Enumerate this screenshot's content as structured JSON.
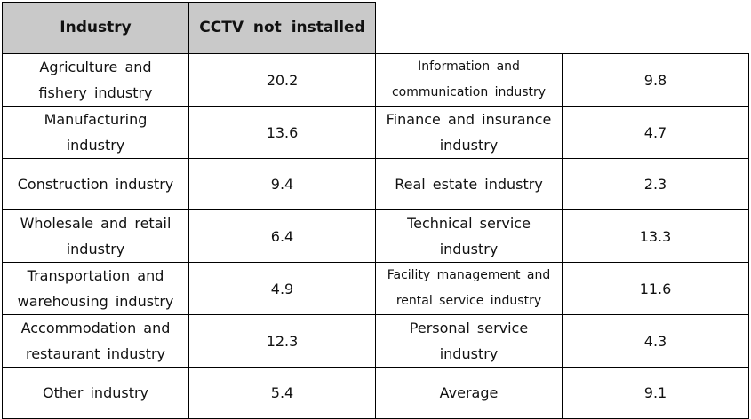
{
  "header": {
    "industry": "Industry",
    "cctv": "CCTV not installed"
  },
  "rows": [
    {
      "left_industry": [
        "Agriculture and",
        "fishery industry"
      ],
      "left_value": "20.2",
      "right_industry": [
        "Information and",
        "communication industry"
      ],
      "right_value": "9.8"
    },
    {
      "left_industry": [
        "Manufacturing",
        "industry"
      ],
      "left_value": "13.6",
      "right_industry": [
        "Finance and insurance",
        "industry"
      ],
      "right_value": "4.7"
    },
    {
      "left_industry": [
        "Construction industry"
      ],
      "left_value": "9.4",
      "right_industry": [
        "Real estate industry"
      ],
      "right_value": "2.3"
    },
    {
      "left_industry": [
        "Wholesale and retail",
        "industry"
      ],
      "left_value": "6.4",
      "right_industry": [
        "Technical service",
        "industry"
      ],
      "right_value": "13.3"
    },
    {
      "left_industry": [
        "Transportation and",
        "warehousing industry"
      ],
      "left_value": "4.9",
      "right_industry": [
        "Facility management and",
        "rental service industry"
      ],
      "right_value": "11.6"
    },
    {
      "left_industry": [
        "Accommodation and",
        "restaurant industry"
      ],
      "left_value": "12.3",
      "right_industry": [
        "Personal service",
        "industry"
      ],
      "right_value": "4.3"
    },
    {
      "left_industry": [
        "Other industry"
      ],
      "left_value": "5.4",
      "right_industry": [
        "Average"
      ],
      "right_value": "9.1"
    }
  ]
}
